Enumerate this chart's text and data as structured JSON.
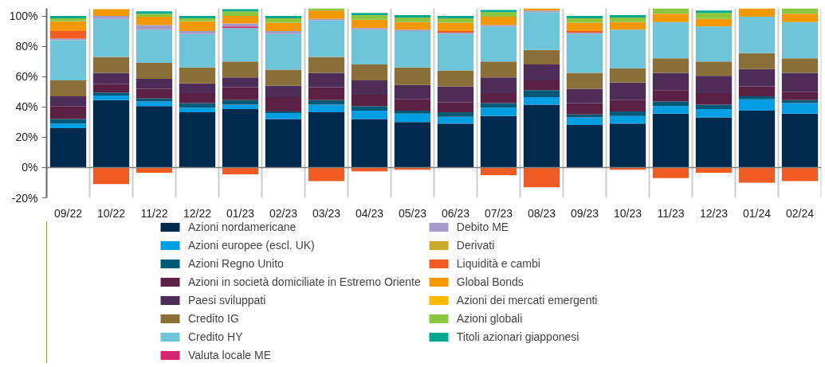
{
  "chart_data": {
    "type": "bar",
    "stacked": true,
    "categories": [
      "09/22",
      "10/22",
      "11/22",
      "12/22",
      "01/23",
      "02/23",
      "03/23",
      "04/23",
      "05/23",
      "06/23",
      "07/23",
      "08/23",
      "09/23",
      "10/23",
      "11/23",
      "12/23",
      "01/24",
      "02/24"
    ],
    "ylim": [
      -20,
      105
    ],
    "yticks": [
      {
        "value": -20,
        "label": "-20%"
      },
      {
        "value": 0,
        "label": "0%"
      },
      {
        "value": 20,
        "label": "20%"
      },
      {
        "value": 40,
        "label": "40%"
      },
      {
        "value": 60,
        "label": "60%"
      },
      {
        "value": 80,
        "label": "80%"
      },
      {
        "value": 100,
        "label": "100%"
      }
    ],
    "grid": "x",
    "legend": "bottom",
    "ref_lines": [
      {
        "axis": "y",
        "value": 0,
        "color": "#7f7f7f"
      }
    ],
    "series": [
      {
        "name": "Azioni nordamericane",
        "color": "#002b4e",
        "values": [
          26,
          44.5,
          40.5,
          36.5,
          38.5,
          32,
          36.5,
          32,
          30,
          29,
          34,
          41.5,
          28,
          29,
          35.5,
          33,
          37.5,
          35.5
        ]
      },
      {
        "name": "Azioni europee (escl. UK)",
        "color": "#009fe3",
        "values": [
          3,
          3,
          3,
          3,
          3,
          4,
          5,
          5.5,
          5.5,
          4.5,
          5.5,
          5,
          5,
          5,
          5,
          5.5,
          7.5,
          7
        ]
      },
      {
        "name": "Azioni Regno Unito",
        "color": "#005a77",
        "values": [
          3,
          2,
          2,
          3,
          3,
          1,
          3,
          3,
          2,
          3,
          3,
          4.5,
          2,
          3,
          3,
          3,
          2,
          2
        ]
      },
      {
        "name": "Azioni in società domiciliate in Estremo Oriente",
        "color": "#5a2145",
        "values": [
          8.5,
          5.5,
          6.5,
          6.5,
          8.5,
          9.5,
          8.5,
          7.5,
          7.5,
          6.5,
          6.5,
          6.5,
          7.5,
          7.5,
          7.5,
          7.5,
          6.5,
          5.5
        ]
      },
      {
        "name": "Paesi sviluppati",
        "color": "#4e2c58",
        "values": [
          6.5,
          7.5,
          6.5,
          6.5,
          6.5,
          7.5,
          9.5,
          9.5,
          9.5,
          10.5,
          10.5,
          10.5,
          9.5,
          11.5,
          11.5,
          11.5,
          11.5,
          12.5
        ]
      },
      {
        "name": "Credito IG",
        "color": "#8a7038",
        "values": [
          10.5,
          10.5,
          10.5,
          10.5,
          10.5,
          10.5,
          10.5,
          10.5,
          11.5,
          10.5,
          10.5,
          9.5,
          10.5,
          9.5,
          9.5,
          9.5,
          10.5,
          9.5
        ]
      },
      {
        "name": "Credito HY",
        "color": "#6ec5d9",
        "values": [
          26.5,
          25,
          22,
          22,
          22,
          23.5,
          24,
          23,
          24,
          24,
          23,
          25,
          25.5,
          25.5,
          24,
          23,
          24,
          24
        ]
      },
      {
        "name": "Valuta locale ME",
        "color": "#d6246e",
        "values": [
          null,
          null,
          null,
          null,
          1,
          null,
          null,
          null,
          null,
          null,
          null,
          null,
          null,
          null,
          null,
          null,
          null,
          null
        ]
      },
      {
        "name": "Debito ME",
        "color": "#a59bc8",
        "values": [
          1,
          2,
          3,
          2,
          2,
          2,
          1,
          1,
          1,
          1,
          1,
          1,
          1,
          null,
          null,
          null,
          null,
          null
        ]
      },
      {
        "name": "Derivati",
        "color": "#c9a92a",
        "values": [
          null,
          null,
          null,
          null,
          null,
          null,
          null,
          null,
          null,
          null,
          null,
          null,
          null,
          null,
          null,
          null,
          null,
          null
        ]
      },
      {
        "name": "Liquidità e cambi",
        "color": "#f05a23",
        "values": [
          5,
          -11,
          -3.5,
          null,
          -4.5,
          null,
          -9,
          -2.5,
          -1.5,
          1,
          -5,
          -13,
          1,
          -1.5,
          -7,
          -3.5,
          -10,
          -9
        ]
      },
      {
        "name": "Global Bonds",
        "color": "#f39800",
        "values": [
          6.5,
          4.5,
          5.5,
          6.5,
          5,
          5.5,
          5.5,
          5.5,
          5,
          5.5,
          5.5,
          1.5,
          5.5,
          5,
          5.5,
          5,
          5.5,
          5.5
        ]
      },
      {
        "name": "Azioni dei mercati emergenti",
        "color": "#fbb900",
        "values": [
          null,
          null,
          null,
          null,
          null,
          null,
          null,
          null,
          null,
          null,
          null,
          null,
          null,
          null,
          null,
          null,
          null,
          null
        ]
      },
      {
        "name": "Azioni globali",
        "color": "#8cc63f",
        "values": [
          2,
          null,
          2,
          2,
          3,
          3,
          1.5,
          3,
          3,
          3,
          3,
          null,
          3,
          3,
          3.5,
          4,
          null,
          3.5
        ]
      },
      {
        "name": "Titoli azionari giapponesi",
        "color": "#00a88f",
        "values": [
          1.5,
          null,
          1.5,
          1.5,
          1.5,
          1.5,
          null,
          1.5,
          1.5,
          1.5,
          1.5,
          null,
          1.5,
          1.5,
          null,
          1.5,
          null,
          null
        ]
      }
    ]
  }
}
